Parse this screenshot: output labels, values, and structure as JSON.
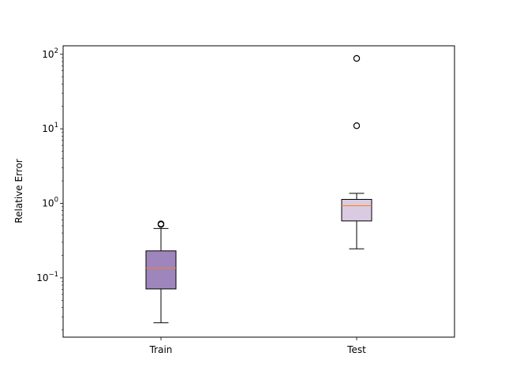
{
  "chart_data": {
    "type": "box",
    "ylabel": "Relative Error",
    "yscale": "log",
    "ylim": [
      0.016,
      130
    ],
    "y_major_ticks": [
      0.1,
      1,
      10,
      100
    ],
    "y_tick_labels": [
      {
        "base": "10",
        "exp": "−1"
      },
      {
        "base": "10",
        "exp": "0"
      },
      {
        "base": "10",
        "exp": "1"
      },
      {
        "base": "10",
        "exp": "2"
      }
    ],
    "grid": false,
    "median_color": "#ff7f0e",
    "categories": [
      "Train",
      "Test"
    ],
    "boxes": [
      {
        "name": "Train",
        "color": "#9e86bd",
        "whisker_low": 0.025,
        "q1": 0.071,
        "median": 0.135,
        "q3": 0.23,
        "whisker_high": 0.46,
        "outliers": [
          0.52,
          0.53
        ]
      },
      {
        "name": "Test",
        "color": "#dacbe2",
        "whisker_low": 0.245,
        "q1": 0.58,
        "median": 0.93,
        "q3": 1.13,
        "whisker_high": 1.36,
        "outliers": [
          11.0,
          88.0
        ]
      }
    ]
  }
}
